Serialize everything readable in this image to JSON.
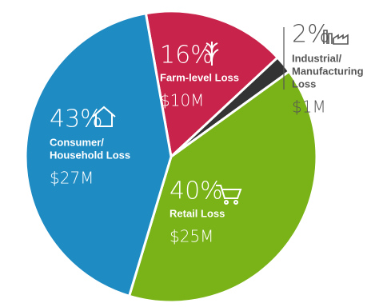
{
  "chart_data": {
    "type": "pie",
    "categories": [
      [
        "Farm-level Loss"
      ],
      [
        "Industrial/",
        "Manufacturing",
        "Loss"
      ],
      [
        "Retail Loss"
      ],
      [
        "Consumer/",
        "Household Loss"
      ]
    ],
    "values": [
      16,
      2,
      40,
      43
    ],
    "value_labels": [
      "16%",
      "2%",
      "40%",
      "43%"
    ],
    "amounts": [
      10000000,
      1000000,
      25000000,
      27000000
    ],
    "amount_labels": [
      "$10M",
      "$1M",
      "$25M",
      "$27M"
    ],
    "colors": [
      "#c8234a",
      "#333333",
      "#7ab317",
      "#1e8bc3"
    ]
  }
}
